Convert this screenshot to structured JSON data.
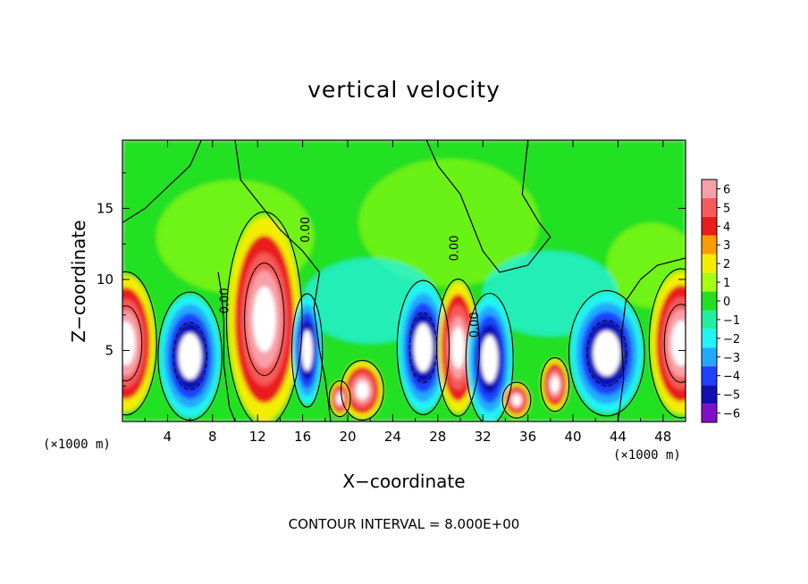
{
  "chart_data": {
    "type": "heatmap",
    "title": "vertical velocity",
    "xlabel": "X−coordinate",
    "ylabel": "Z−coordinate",
    "x_unit_label": "(×1000 m)",
    "xlim": [
      0,
      50
    ],
    "ylim": [
      0,
      19.8
    ],
    "x_ticks": [
      4,
      8,
      12,
      16,
      20,
      24,
      28,
      32,
      36,
      40,
      44,
      48
    ],
    "y_ticks": [
      5,
      10,
      15
    ],
    "contour_interval": "CONTOUR INTERVAL = 8.000E+00",
    "contour_labels": [
      {
        "text": "0.00",
        "x": 9.4,
        "z": 8.5
      },
      {
        "text": "0.00",
        "x": 16.6,
        "z": 13.5
      },
      {
        "text": "0.00",
        "x": 29.8,
        "z": 12.2
      },
      {
        "text": "0.00",
        "x": 31.6,
        "z": 6.8
      }
    ],
    "colorbar": {
      "levels": [
        6,
        5,
        4,
        3,
        2,
        1,
        0,
        -1,
        -2,
        -3,
        -4,
        -5,
        -6
      ],
      "colors": [
        "#f8a0a8",
        "#f65a5a",
        "#ea1c1c",
        "#ff9a00",
        "#f3ee00",
        "#a4ff10",
        "#24e024",
        "#20f0a0",
        "#20f4f4",
        "#20aaff",
        "#1e42ff",
        "#1010b4",
        "#8010c8"
      ]
    },
    "features": [
      {
        "kind": "updraft",
        "x": 0.3,
        "z": 5.5,
        "peak": 8
      },
      {
        "kind": "downdraft",
        "x": 6.0,
        "z": 4.5,
        "peak": -8
      },
      {
        "kind": "updraft",
        "x": 12.6,
        "z": 7.5,
        "peak": 8
      },
      {
        "kind": "downdraft",
        "x": 16.5,
        "z": 5.0,
        "peak": -7
      },
      {
        "kind": "updraft",
        "x": 21.3,
        "z": 2.2,
        "peak": 7
      },
      {
        "kind": "downdraft",
        "x": 26.7,
        "z": 5.5,
        "peak": -7
      },
      {
        "kind": "updraft",
        "x": 29.8,
        "z": 5.0,
        "peak": 5
      },
      {
        "kind": "downdraft",
        "x": 32.5,
        "z": 4.5,
        "peak": -6
      },
      {
        "kind": "downdraft",
        "x": 43.0,
        "z": 5.0,
        "peak": -8
      },
      {
        "kind": "updraft",
        "x": 49.5,
        "z": 5.5,
        "peak": 8
      }
    ]
  }
}
